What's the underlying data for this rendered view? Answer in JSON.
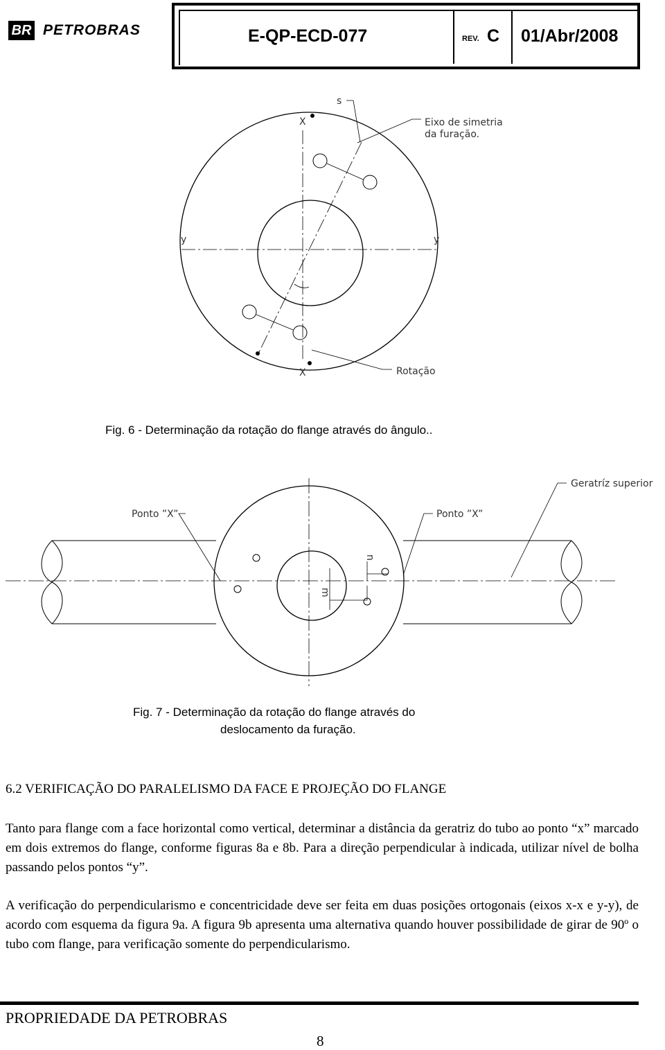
{
  "header": {
    "logo_mark": "BR",
    "logo_text": "PETROBRAS",
    "doc_code": "E-QP-ECD-077",
    "rev_label": "REV.",
    "rev": "C",
    "date": "01/Abr/2008"
  },
  "fig6": {
    "labels": {
      "s": "s",
      "x_top": "X",
      "axis_line1": "Eixo de simetria",
      "axis_line2": "da furação.",
      "y_left": "y",
      "y_right": "y",
      "x_bottom": "X",
      "rotation": "Rotação"
    },
    "caption": "Fig. 6 - Determinação da rotação do flange através do ângulo.."
  },
  "fig7": {
    "labels": {
      "top_generatrix": "Geratríz superior",
      "point_left": "Ponto ”X”",
      "point_right": "Ponto ”X”",
      "n": "n",
      "m": "m"
    },
    "caption": [
      "Fig. 7 - Determinação da rotação do flange através do",
      "deslocamento da furação."
    ]
  },
  "section": {
    "heading": "6.2 VERIFICAÇÃO DO PARALELISMO DA FACE E PROJEÇÃO DO FLANGE",
    "paragraphs": [
      "Tanto para flange com a face horizontal como vertical, determinar a distância da geratriz do tubo ao ponto “x” marcado em dois extremos do flange, conforme figuras 8a  e 8b.  Para a direção perpendicular à indicada, utilizar nível de bolha passando pelos pontos “y”.",
      "A verificação do perpendicularismo e concentricidade deve ser feita em duas posições ortogonais (eixos x-x  e  y-y), de acordo com esquema da figura 9a. A figura 9b apresenta uma alternativa quando houver possibilidade de girar de 90º o tubo com flange, para verificação somente do perpendicularismo."
    ]
  },
  "footer": {
    "owner": "PROPRIEDADE DA PETROBRAS",
    "page": "8"
  }
}
